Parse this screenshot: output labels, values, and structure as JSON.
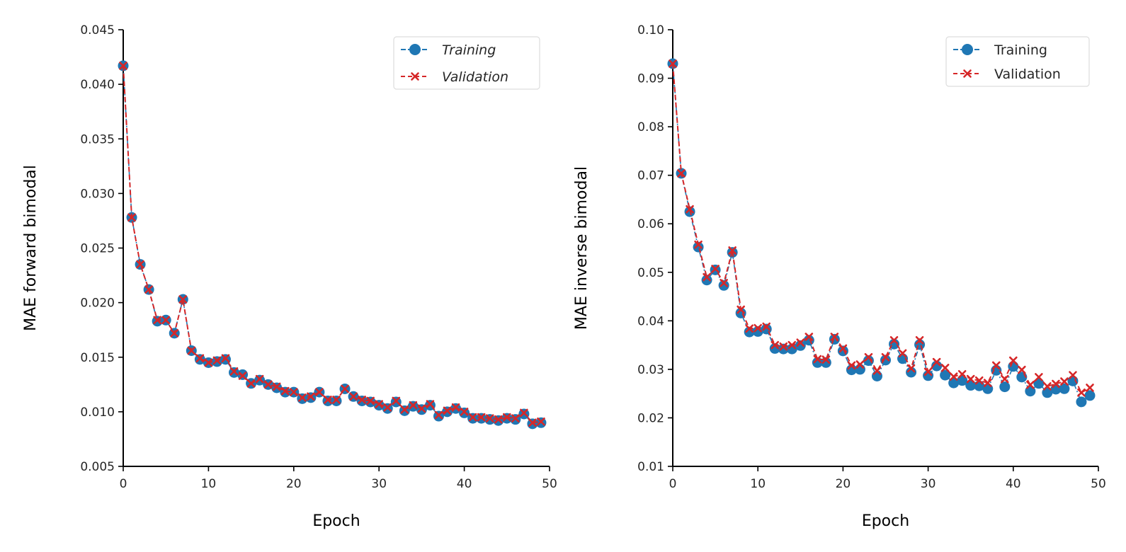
{
  "chart_data": [
    {
      "type": "line",
      "title": "",
      "xlabel": "Epoch",
      "ylabel": "MAE forward bimodal",
      "xlim": [
        0,
        50
      ],
      "ylim": [
        0.005,
        0.045
      ],
      "xticks": [
        "0",
        "10",
        "20",
        "30",
        "40",
        "50"
      ],
      "yticks": [
        "0.005",
        "0.010",
        "0.015",
        "0.020",
        "0.025",
        "0.030",
        "0.035",
        "0.040",
        "0.045"
      ],
      "grid": false,
      "legend_position": "top-right",
      "legend_italic": true,
      "x": [
        0,
        1,
        2,
        3,
        4,
        5,
        6,
        7,
        8,
        9,
        10,
        11,
        12,
        13,
        14,
        15,
        16,
        17,
        18,
        19,
        20,
        21,
        22,
        23,
        24,
        25,
        26,
        27,
        28,
        29,
        30,
        31,
        32,
        33,
        34,
        35,
        36,
        37,
        38,
        39,
        40,
        41,
        42,
        43,
        44,
        45,
        46,
        47,
        48,
        49
      ],
      "series": [
        {
          "name": "Training",
          "color": "#1f77b4",
          "marker": "circle",
          "values": [
            0.0417,
            0.0278,
            0.0235,
            0.0212,
            0.0183,
            0.0184,
            0.0172,
            0.0203,
            0.0156,
            0.0148,
            0.0145,
            0.0146,
            0.0148,
            0.0136,
            0.0134,
            0.0126,
            0.0129,
            0.0125,
            0.0122,
            0.0118,
            0.0118,
            0.0112,
            0.0113,
            0.0118,
            0.011,
            0.011,
            0.0121,
            0.0114,
            0.011,
            0.0109,
            0.0106,
            0.0103,
            0.0109,
            0.0101,
            0.0105,
            0.0102,
            0.0106,
            0.0096,
            0.01,
            0.0103,
            0.0099,
            0.0094,
            0.0094,
            0.0093,
            0.0092,
            0.0094,
            0.0093,
            0.0098,
            0.0089,
            0.009
          ]
        },
        {
          "name": "Validation",
          "color": "#d62728",
          "marker": "x",
          "values": [
            0.0417,
            0.0278,
            0.0235,
            0.0212,
            0.0184,
            0.0184,
            0.0172,
            0.0203,
            0.0156,
            0.0149,
            0.0145,
            0.0147,
            0.0149,
            0.0137,
            0.0133,
            0.0126,
            0.013,
            0.0125,
            0.0123,
            0.0119,
            0.0118,
            0.0113,
            0.0114,
            0.0118,
            0.0111,
            0.0111,
            0.0121,
            0.0114,
            0.0111,
            0.011,
            0.0107,
            0.0104,
            0.011,
            0.0102,
            0.0106,
            0.0103,
            0.0107,
            0.0097,
            0.0101,
            0.0104,
            0.01,
            0.0095,
            0.0095,
            0.0094,
            0.0093,
            0.0095,
            0.0094,
            0.0099,
            0.009,
            0.0091
          ]
        }
      ]
    },
    {
      "type": "line",
      "title": "",
      "xlabel": "Epoch",
      "ylabel": "MAE inverse bimodal",
      "xlim": [
        0,
        50
      ],
      "ylim": [
        0.01,
        0.1
      ],
      "xticks": [
        "0",
        "10",
        "20",
        "30",
        "40",
        "50"
      ],
      "yticks": [
        "0.01",
        "0.02",
        "0.03",
        "0.04",
        "0.05",
        "0.06",
        "0.07",
        "0.08",
        "0.09",
        "0.10"
      ],
      "grid": false,
      "legend_position": "top-right",
      "legend_italic": false,
      "x": [
        0,
        1,
        2,
        3,
        4,
        5,
        6,
        7,
        8,
        9,
        10,
        11,
        12,
        13,
        14,
        15,
        16,
        17,
        18,
        19,
        20,
        21,
        22,
        23,
        24,
        25,
        26,
        27,
        28,
        29,
        30,
        31,
        32,
        33,
        34,
        35,
        36,
        37,
        38,
        39,
        40,
        41,
        42,
        43,
        44,
        45,
        46,
        47,
        48,
        49
      ],
      "series": [
        {
          "name": "Training",
          "color": "#1f77b4",
          "marker": "circle",
          "values": [
            0.093,
            0.0704,
            0.0625,
            0.0552,
            0.0484,
            0.0505,
            0.0473,
            0.0541,
            0.0416,
            0.0377,
            0.0378,
            0.0383,
            0.0343,
            0.0342,
            0.0342,
            0.0349,
            0.036,
            0.0314,
            0.0314,
            0.0362,
            0.0338,
            0.0299,
            0.03,
            0.0318,
            0.0286,
            0.0319,
            0.0352,
            0.0322,
            0.0294,
            0.0351,
            0.0287,
            0.0307,
            0.0288,
            0.0272,
            0.0277,
            0.0267,
            0.0266,
            0.026,
            0.0298,
            0.0264,
            0.0306,
            0.0284,
            0.0255,
            0.0271,
            0.0252,
            0.0259,
            0.026,
            0.0276,
            0.0233,
            0.0246
          ]
        },
        {
          "name": "Validation",
          "color": "#d62728",
          "marker": "x",
          "values": [
            0.093,
            0.0704,
            0.063,
            0.0557,
            0.049,
            0.0507,
            0.0478,
            0.0545,
            0.0423,
            0.0384,
            0.0385,
            0.0388,
            0.035,
            0.0347,
            0.035,
            0.0355,
            0.0367,
            0.0321,
            0.032,
            0.0367,
            0.0343,
            0.0308,
            0.031,
            0.0325,
            0.0297,
            0.0325,
            0.036,
            0.0333,
            0.0302,
            0.036,
            0.0295,
            0.0315,
            0.0303,
            0.0285,
            0.029,
            0.028,
            0.0277,
            0.0272,
            0.0308,
            0.028,
            0.0318,
            0.0299,
            0.0268,
            0.0284,
            0.0265,
            0.027,
            0.0275,
            0.0288,
            0.0252,
            0.0262
          ]
        }
      ]
    }
  ]
}
